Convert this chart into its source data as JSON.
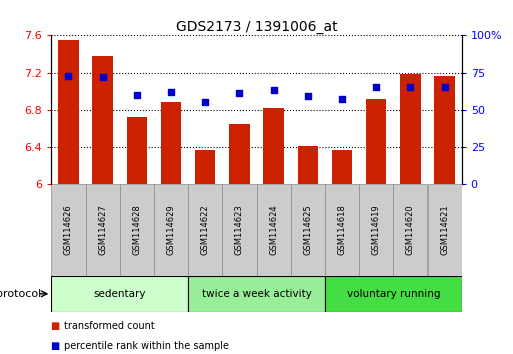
{
  "title": "GDS2173 / 1391006_at",
  "categories": [
    "GSM114626",
    "GSM114627",
    "GSM114628",
    "GSM114629",
    "GSM114622",
    "GSM114623",
    "GSM114624",
    "GSM114625",
    "GSM114618",
    "GSM114619",
    "GSM114620",
    "GSM114621"
  ],
  "bar_values": [
    7.55,
    7.38,
    6.72,
    6.88,
    6.37,
    6.65,
    6.82,
    6.41,
    6.37,
    6.92,
    7.18,
    7.16
  ],
  "percentile_values": [
    73,
    72,
    60,
    62,
    55,
    61,
    63,
    59,
    57,
    65,
    65,
    65
  ],
  "bar_color": "#cc2200",
  "percentile_color": "#0000cc",
  "ylim_left": [
    6.0,
    7.6
  ],
  "ylim_right": [
    0,
    100
  ],
  "yticks_left": [
    6.0,
    6.4,
    6.8,
    7.2,
    7.6
  ],
  "yticks_right": [
    0,
    25,
    50,
    75,
    100
  ],
  "ytick_labels_left": [
    "6",
    "6.4",
    "6.8",
    "7.2",
    "7.6"
  ],
  "ytick_labels_right": [
    "0",
    "25",
    "50",
    "75",
    "100%"
  ],
  "groups": [
    {
      "label": "sedentary",
      "start": 0,
      "end": 4,
      "color": "#ccffcc"
    },
    {
      "label": "twice a week activity",
      "start": 4,
      "end": 8,
      "color": "#99ee99"
    },
    {
      "label": "voluntary running",
      "start": 8,
      "end": 12,
      "color": "#44dd44"
    }
  ],
  "protocol_label": "protocol",
  "legend_items": [
    {
      "label": "transformed count",
      "color": "#cc2200"
    },
    {
      "label": "percentile rank within the sample",
      "color": "#0000cc"
    }
  ],
  "bar_width": 0.6,
  "bar_base": 6.0,
  "xbox_color": "#cccccc",
  "xbox_edge": "#888888"
}
